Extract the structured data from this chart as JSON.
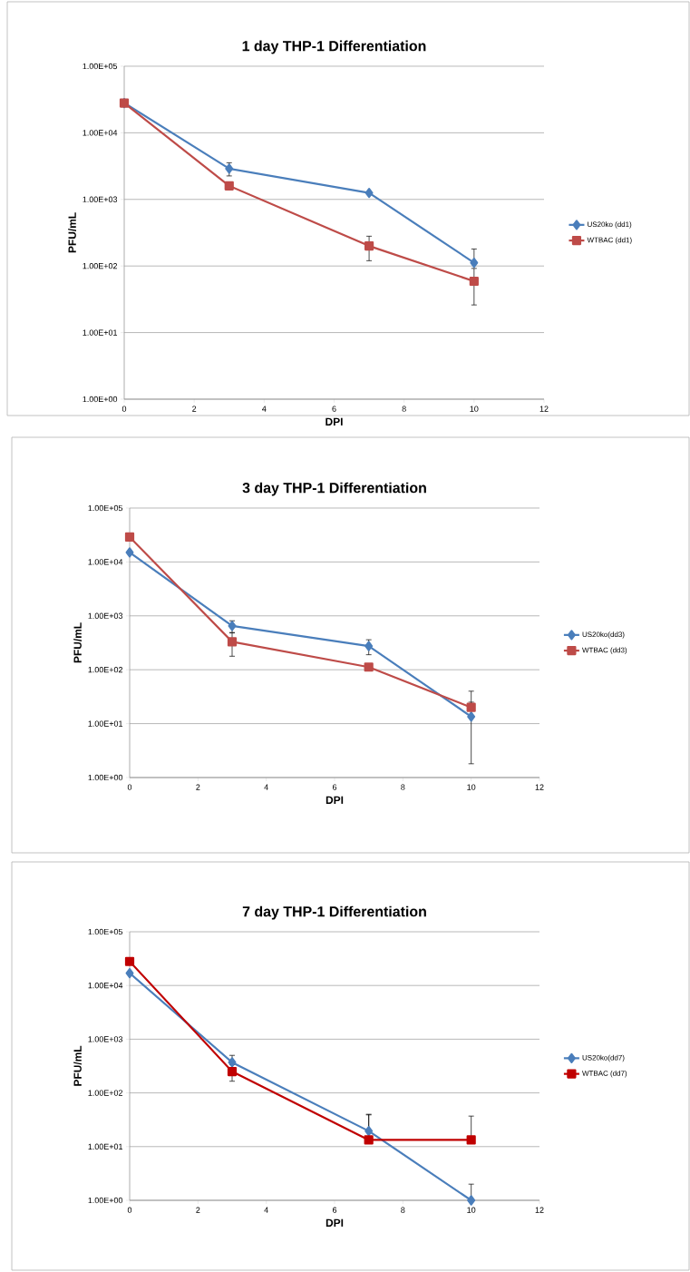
{
  "chart_data": [
    {
      "type": "line",
      "title": "1 day THP-1 Differentiation",
      "xlabel": "DPI",
      "ylabel": "PFU/mL",
      "log": "y",
      "grid": "y",
      "legend": "right",
      "xlim": [
        0,
        12
      ],
      "xticks": [
        0,
        2,
        4,
        6,
        8,
        10,
        12
      ],
      "ylim": [
        1,
        100000
      ],
      "yticks": [
        {
          "value": 1,
          "label": "1.00E+00"
        },
        {
          "value": 10,
          "label": "1.00E+01"
        },
        {
          "value": 100,
          "label": "1.00E+02"
        },
        {
          "value": 1000,
          "label": "1.00E+03"
        },
        {
          "value": 10000,
          "label": "1.00E+04"
        },
        {
          "value": 100000,
          "label": "1.00E+05"
        }
      ],
      "x": [
        0,
        3,
        7,
        10
      ],
      "series": [
        {
          "name": "US20ko (dd1)",
          "color": "#4a7ebb",
          "marker": "diamond",
          "values": [
            28000,
            2900,
            1250,
            112
          ],
          "errors": [
            null,
            [
              2250,
              3550
            ],
            null,
            [
              112,
              180
            ]
          ]
        },
        {
          "name": "WTBAC (dd1)",
          "color": "#be4b48",
          "marker": "square",
          "values": [
            28000,
            1600,
            200,
            59
          ],
          "errors": [
            null,
            null,
            [
              120,
              280
            ],
            [
              26,
              92
            ]
          ]
        }
      ]
    },
    {
      "type": "line",
      "title": "3 day THP-1 Differentiation",
      "xlabel": "DPI",
      "ylabel": "PFU/mL",
      "log": "y",
      "grid": "y",
      "legend": "right",
      "xlim": [
        0,
        12
      ],
      "xticks": [
        0,
        2,
        4,
        6,
        8,
        10,
        12
      ],
      "ylim": [
        1,
        100000
      ],
      "yticks": [
        {
          "value": 1,
          "label": "1.00E+00"
        },
        {
          "value": 10,
          "label": "1.00E+01"
        },
        {
          "value": 100,
          "label": "1.00E+02"
        },
        {
          "value": 1000,
          "label": "1.00E+03"
        },
        {
          "value": 10000,
          "label": "1.00E+04"
        },
        {
          "value": 100000,
          "label": "1.00E+05"
        }
      ],
      "x": [
        0,
        3,
        7,
        10
      ],
      "series": [
        {
          "name": "US20ko(dd3)",
          "color": "#4a7ebb",
          "marker": "diamond",
          "values": [
            15000,
            650,
            275,
            13.5
          ],
          "errors": [
            null,
            [
              490,
              810
            ],
            [
              190,
              360
            ],
            [
              1.8,
              25
            ]
          ]
        },
        {
          "name": "WTBAC (dd3)",
          "color": "#be4b48",
          "marker": "square",
          "values": [
            29000,
            330,
            112,
            20
          ],
          "errors": [
            null,
            [
              178,
              482
            ],
            null,
            [
              20,
              40
            ]
          ]
        }
      ]
    },
    {
      "type": "line",
      "title": "7 day THP-1 Differentiation",
      "xlabel": "DPI",
      "ylabel": "PFU/mL",
      "log": "y",
      "grid": "y",
      "legend": "right",
      "xlim": [
        0,
        12
      ],
      "xticks": [
        0,
        2,
        4,
        6,
        8,
        10,
        12
      ],
      "ylim": [
        1,
        100000
      ],
      "yticks": [
        {
          "value": 1,
          "label": "1.00E+00"
        },
        {
          "value": 10,
          "label": "1.00E+01"
        },
        {
          "value": 100,
          "label": "1.00E+02"
        },
        {
          "value": 1000,
          "label": "1.00E+03"
        },
        {
          "value": 10000,
          "label": "1.00E+04"
        },
        {
          "value": 100000,
          "label": "1.00E+05"
        }
      ],
      "x": [
        0,
        3,
        7,
        10
      ],
      "series": [
        {
          "name": "US20ko(dd7)",
          "color": "#4a7ebb",
          "marker": "diamond",
          "values": [
            17000,
            370,
            19.5,
            1
          ],
          "errors": [
            null,
            [
              370,
              500
            ],
            [
              19.5,
              40
            ],
            [
              1,
              2
            ]
          ]
        },
        {
          "name": "WTBAC (dd7)",
          "color": "#c00000",
          "marker": "square",
          "values": [
            28000,
            250,
            13.3,
            13.3
          ],
          "errors": [
            null,
            [
              165,
              335
            ],
            [
              13.3,
              39
            ],
            [
              13.3,
              37
            ]
          ]
        }
      ]
    }
  ]
}
